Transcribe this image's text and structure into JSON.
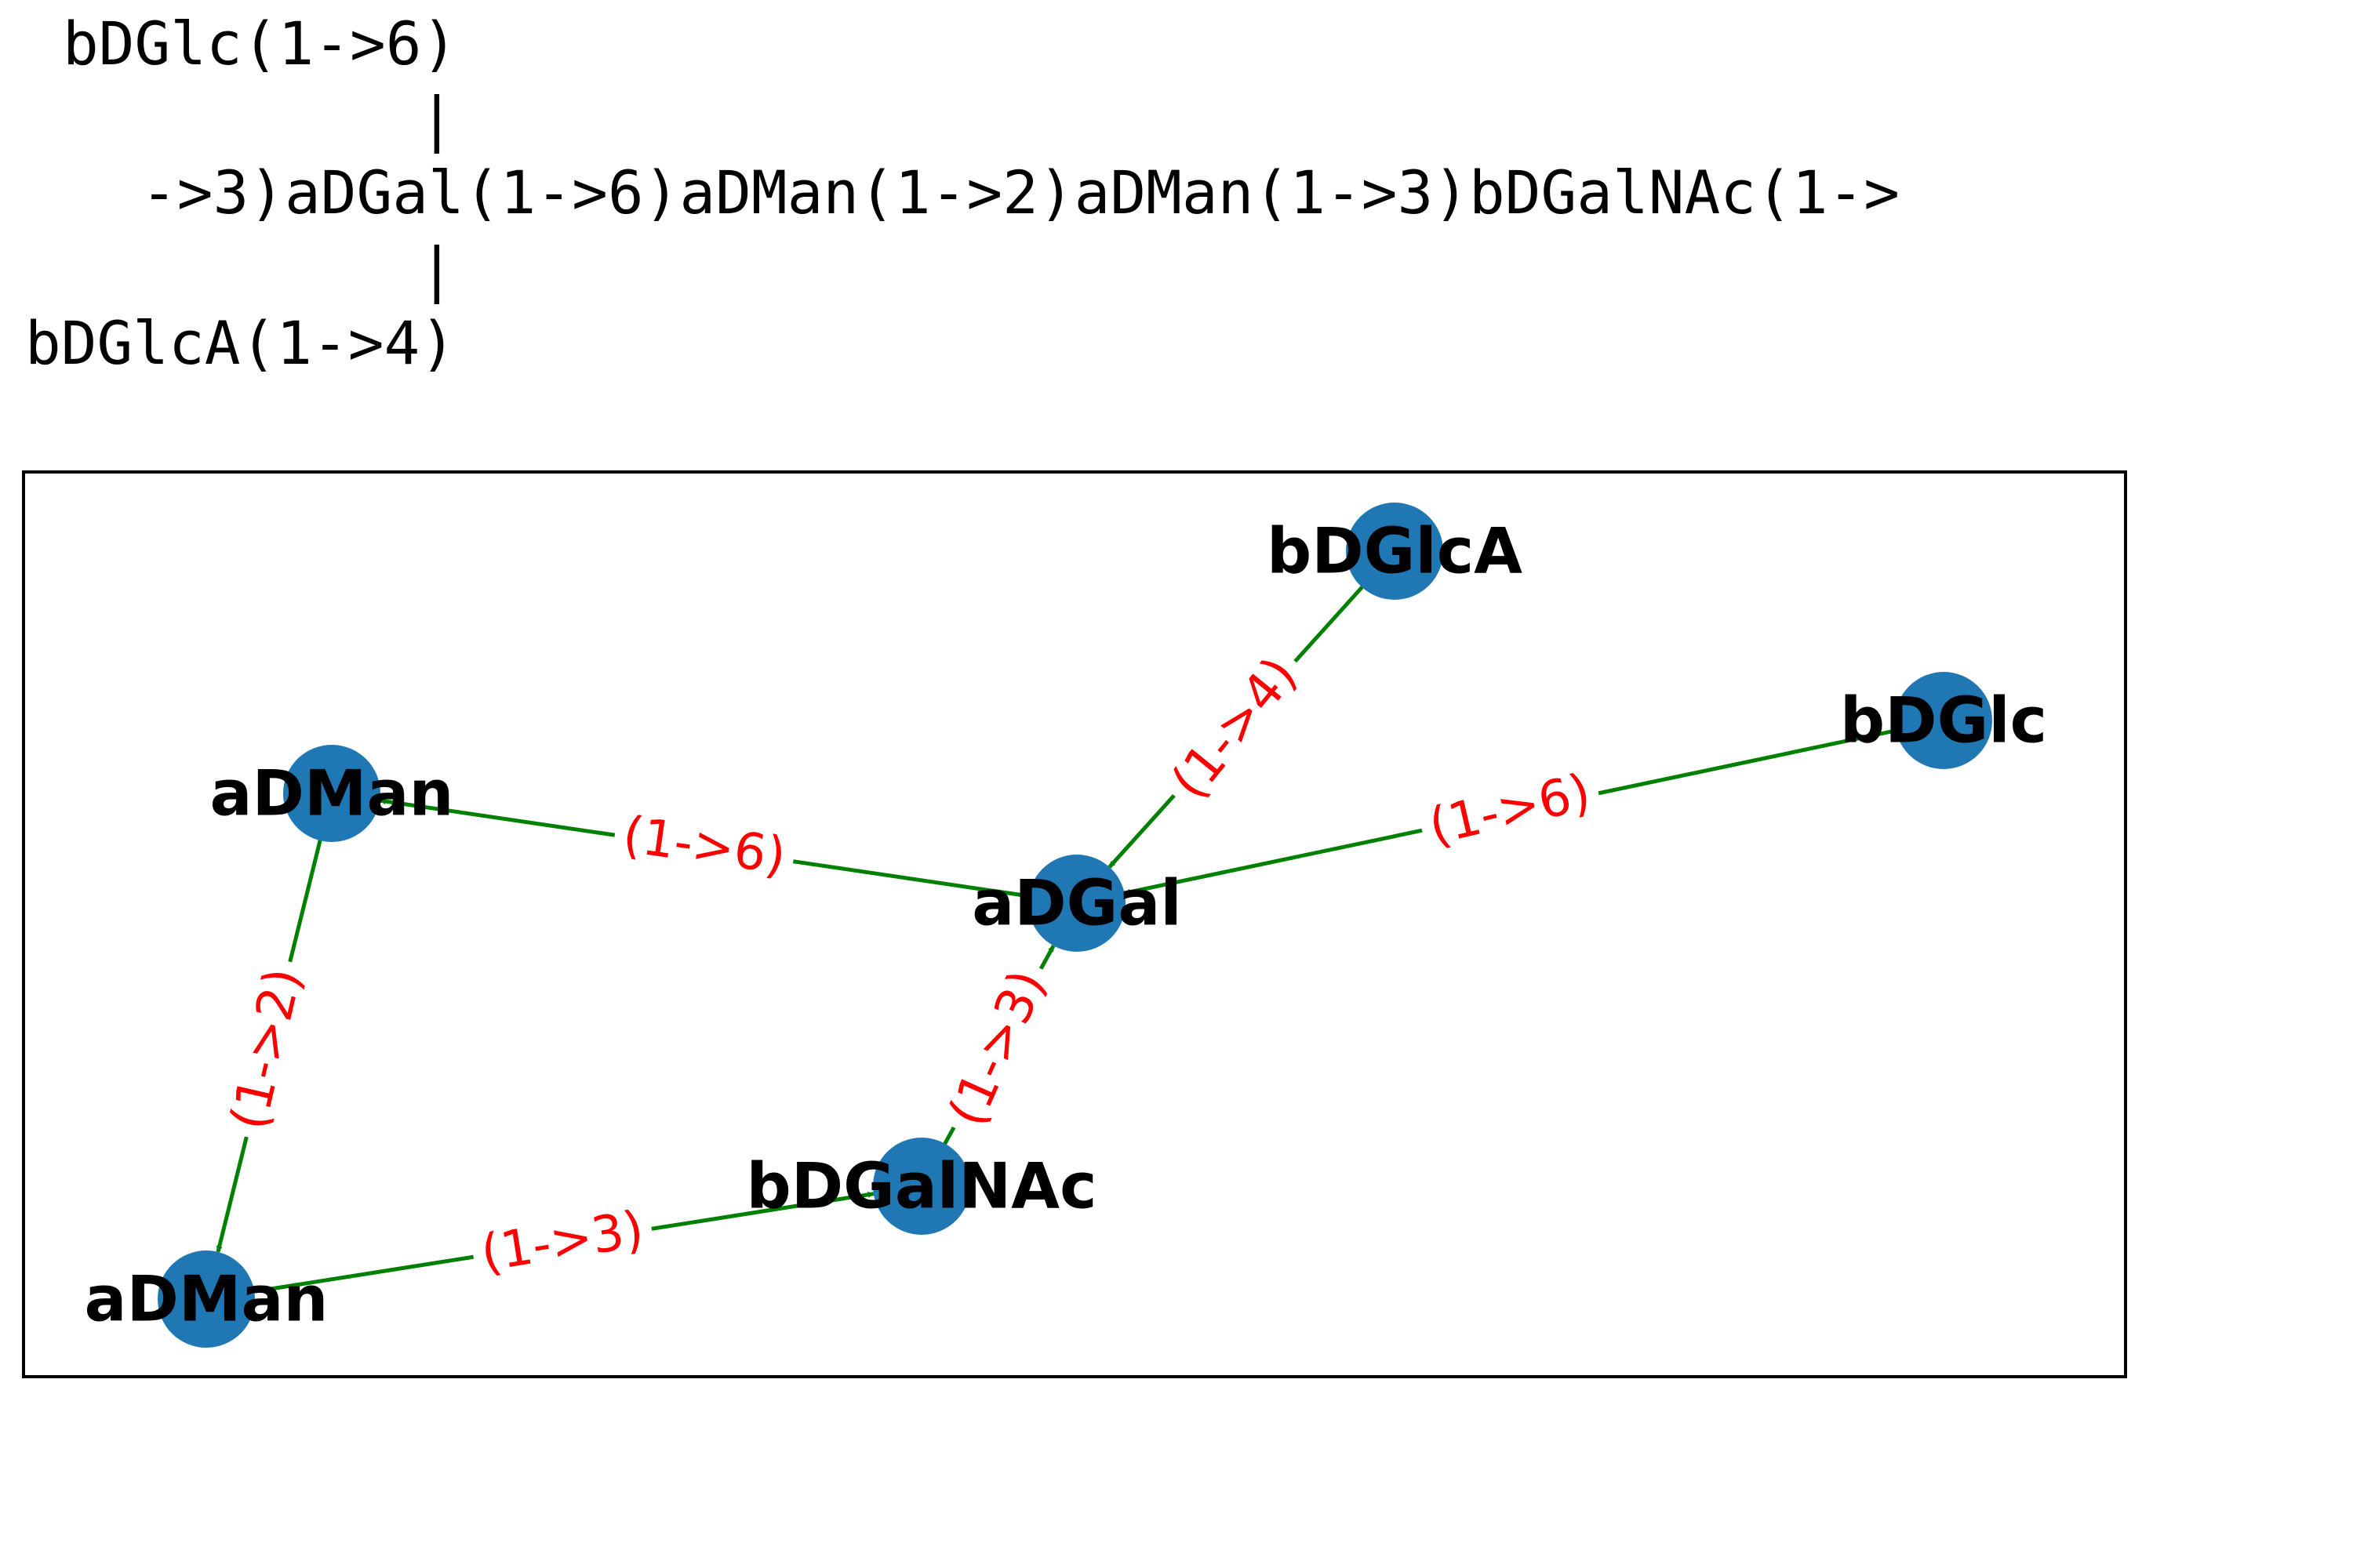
{
  "glycan_text": {
    "branch_top": "bDGlc(1->6)",
    "connector_top": "|",
    "main_chain": "->3)aDGal(1->6)aDMan(1->2)aDMan(1->3)bDGalNAc(1->",
    "connector_bottom": "|",
    "branch_bottom": "bDGlcA(1->4)"
  },
  "graph": {
    "colors": {
      "node": "#1f77b4",
      "edge": "#008000",
      "edge_label": "#ff0000",
      "node_label": "#000000",
      "frame": "#000000"
    },
    "nodes": [
      {
        "id": "bDGlcA",
        "label": "bDGlcA"
      },
      {
        "id": "bDGlc",
        "label": "bDGlc"
      },
      {
        "id": "aDMan1",
        "label": "aDMan"
      },
      {
        "id": "aDGal",
        "label": "aDGal"
      },
      {
        "id": "bDGalNAc",
        "label": "bDGalNAc"
      },
      {
        "id": "aDMan2",
        "label": "aDMan"
      }
    ],
    "edges": [
      {
        "id": "e1",
        "source": "bDGlcA",
        "target": "aDGal",
        "label": "(1->4)"
      },
      {
        "id": "e2",
        "source": "bDGlc",
        "target": "aDGal",
        "label": "(1->6)"
      },
      {
        "id": "e3",
        "source": "aDGal",
        "target": "aDMan1",
        "label": "(1->6)"
      },
      {
        "id": "e4",
        "source": "aDMan1",
        "target": "aDMan2",
        "label": "(1->2)"
      },
      {
        "id": "e5",
        "source": "aDMan2",
        "target": "bDGalNAc",
        "label": "(1->3)"
      },
      {
        "id": "e6",
        "source": "bDGalNAc",
        "target": "aDGal",
        "label": "(1->3)"
      }
    ]
  }
}
